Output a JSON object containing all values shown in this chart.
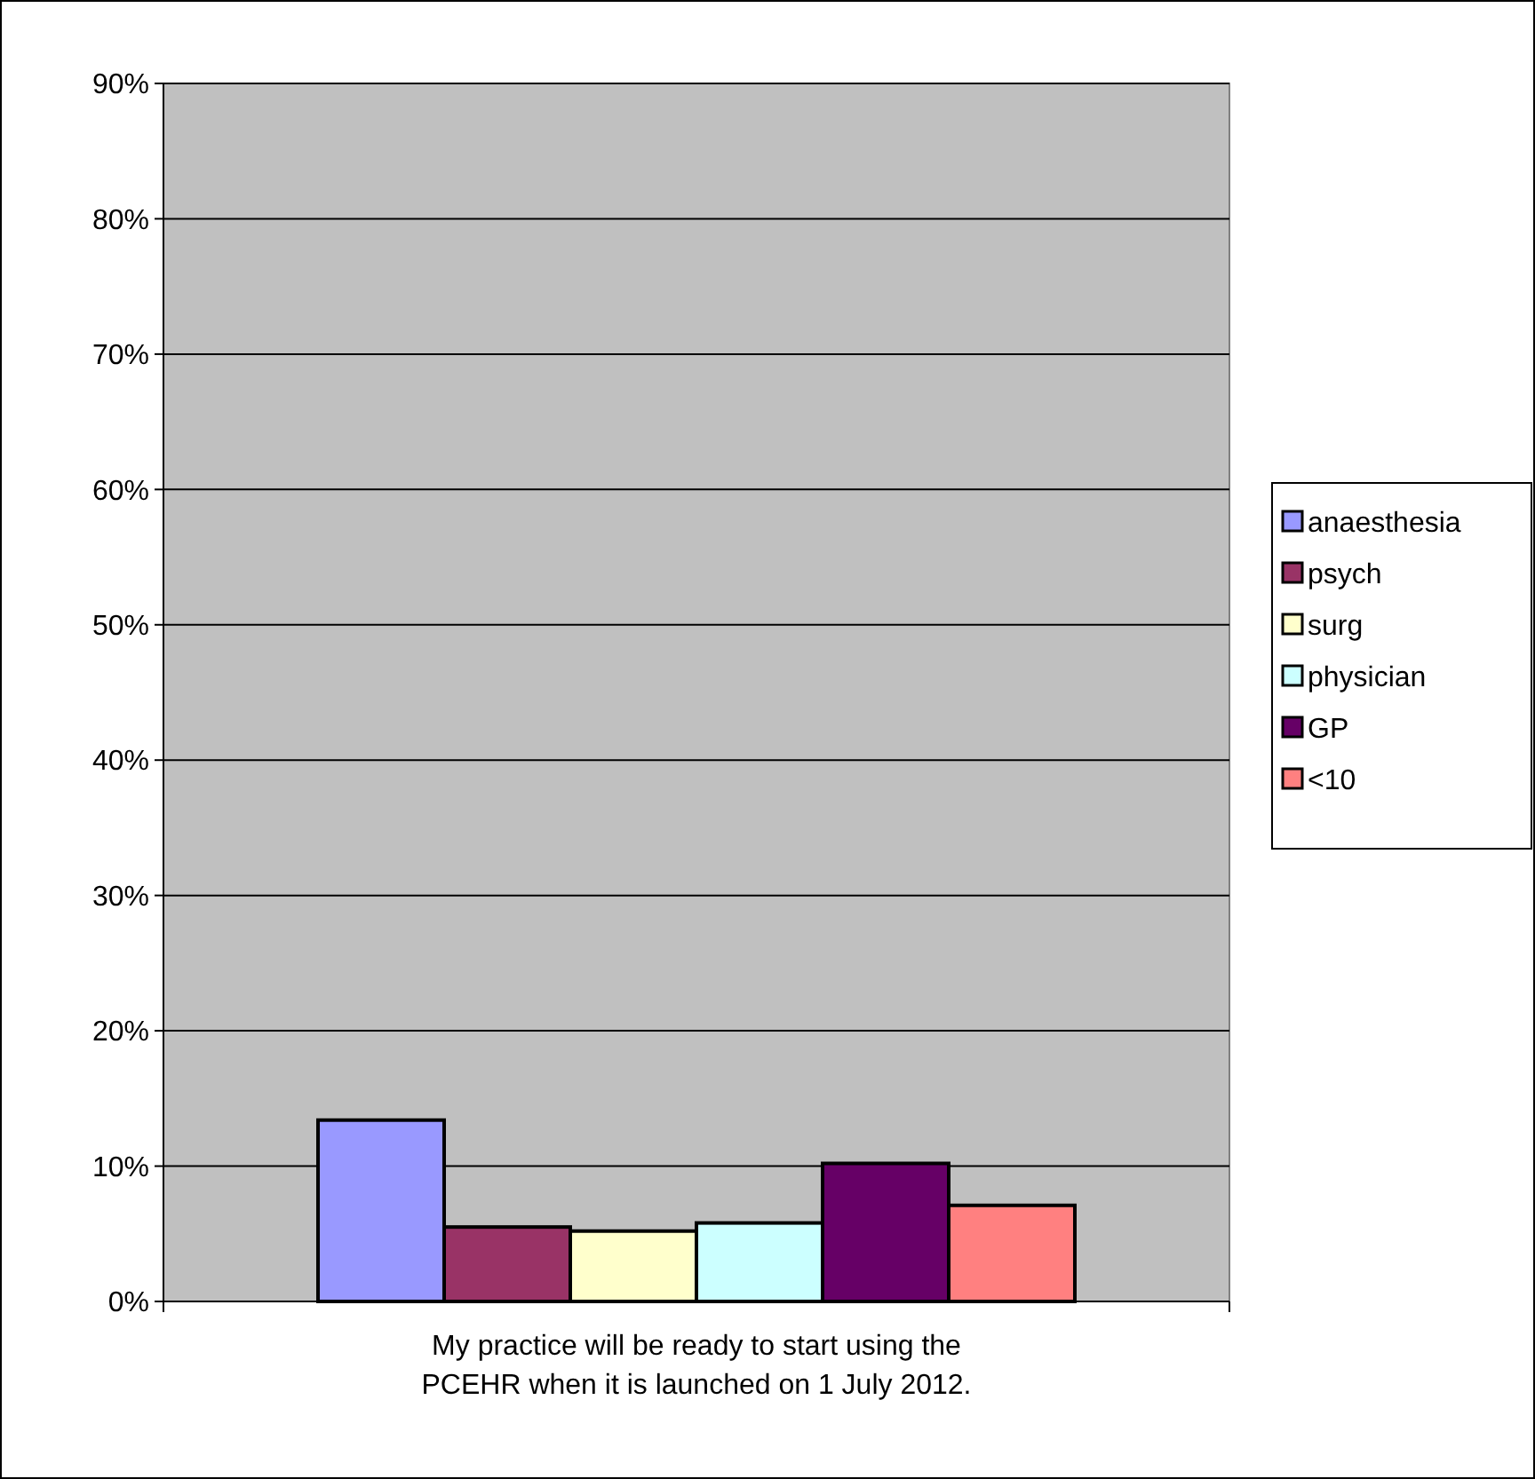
{
  "chart_data": {
    "type": "bar",
    "categories": [
      "My practice will be ready to start using the PCEHR when it is launched on 1 July 2012."
    ],
    "series": [
      {
        "name": "anaesthesia",
        "color": "#9999ff",
        "values": [
          13.4
        ]
      },
      {
        "name": "psych",
        "color": "#993366",
        "values": [
          5.5
        ]
      },
      {
        "name": "surg",
        "color": "#ffffcc",
        "values": [
          5.2
        ]
      },
      {
        "name": "physician",
        "color": "#ccffff",
        "values": [
          5.8
        ]
      },
      {
        "name": "GP",
        "color": "#660066",
        "values": [
          10.2
        ]
      },
      {
        "name": "<10",
        "color": "#ff8080",
        "values": [
          7.1
        ]
      }
    ],
    "ylim": [
      0,
      90
    ],
    "yticks": [
      {
        "value": 0,
        "label": "0%"
      },
      {
        "value": 10,
        "label": "10%"
      },
      {
        "value": 20,
        "label": "20%"
      },
      {
        "value": 30,
        "label": "30%"
      },
      {
        "value": 40,
        "label": "40%"
      },
      {
        "value": 50,
        "label": "50%"
      },
      {
        "value": 60,
        "label": "60%"
      },
      {
        "value": 70,
        "label": "70%"
      },
      {
        "value": 80,
        "label": "80%"
      },
      {
        "value": 90,
        "label": "90%"
      }
    ],
    "grid": "y",
    "legend": "right"
  }
}
